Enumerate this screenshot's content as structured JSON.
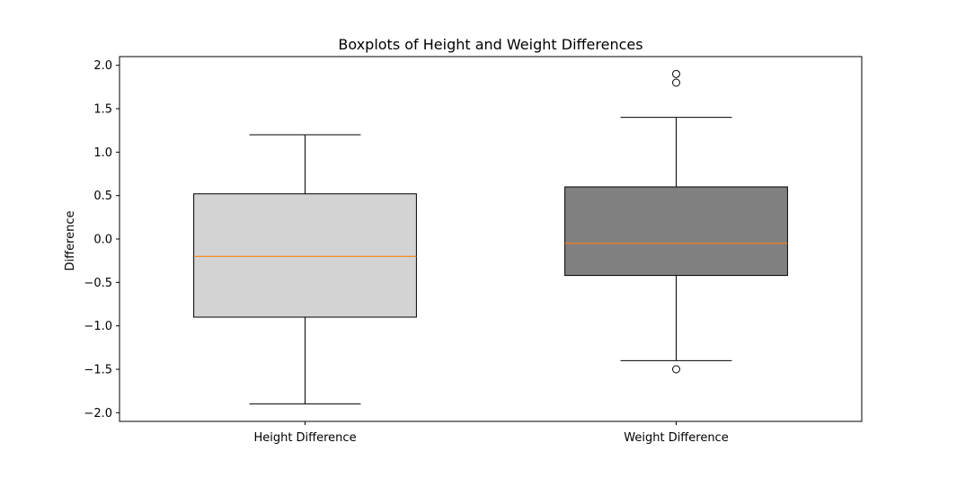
{
  "chart_data": {
    "type": "box",
    "title": "Boxplots of Height and Weight Differences",
    "xlabel": "",
    "ylabel": "Difference",
    "ylim": [
      -2.1,
      2.1
    ],
    "yticks": [
      2.0,
      1.5,
      1.0,
      0.5,
      0.0,
      -0.5,
      -1.0,
      -1.5,
      -2.0
    ],
    "ytick_labels": [
      "2.0",
      "1.5",
      "1.0",
      "0.5",
      "0.0",
      "−0.5",
      "−1.0",
      "−1.5",
      "−2.0"
    ],
    "grid": false,
    "legend": "none",
    "categories": [
      "Height Difference",
      "Weight Difference"
    ],
    "boxes": [
      {
        "category": "Height Difference",
        "whisker_low": -1.9,
        "q1": -0.9,
        "median": -0.2,
        "q3": 0.52,
        "whisker_high": 1.2,
        "outliers": [],
        "fill": "#d3d3d3"
      },
      {
        "category": "Weight Difference",
        "whisker_low": -1.4,
        "q1": -0.42,
        "median": -0.05,
        "q3": 0.6,
        "whisker_high": 1.4,
        "outliers": [
          1.9,
          1.8,
          -1.5
        ],
        "fill": "#808080"
      }
    ],
    "colors": {
      "median": "#ff7f0e",
      "edge": "#000000"
    }
  }
}
